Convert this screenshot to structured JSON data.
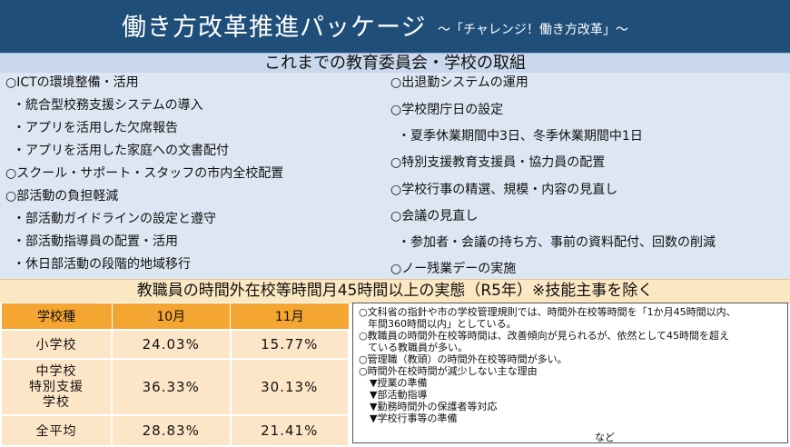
{
  "header": {
    "title": "働き方改革推進パッケージ",
    "subtitle": "～「チャレンジ！働き方改革」～"
  },
  "initiatives": {
    "heading": "これまでの教育委員会・学校の取組",
    "left": [
      "○ICTの環境整備・活用",
      "・統合型校務支援システムの導入",
      "・アプリを活用した欠席報告",
      "・アプリを活用した家庭への文書配付",
      "○スクール・サポート・スタッフの市内全校配置",
      "○部活動の負担軽減",
      "・部活動ガイドラインの設定と遵守",
      "・部活動指導員の配置・活用",
      "・休日部活動の段階的地域移行"
    ],
    "right": [
      "○出退勤システムの運用",
      "○学校閉庁日の設定",
      "・夏季休業期間中3日、冬季休業期間中1日",
      "○特別支援教育支援員・協力員の配置",
      "○学校行事の精選、規模・内容の見直し",
      "○会議の見直し",
      "・参加者・会議の持ち方、事前の資料配付、回数の削減",
      "○ノー残業デーの実施"
    ]
  },
  "stats": {
    "heading": "教職員の時間外在校等時間月45時間以上の実態（R5年）※技能主事を除く",
    "table": {
      "headers": [
        "学校種",
        "10月",
        "11月"
      ],
      "rows": [
        {
          "type": "小学校",
          "oct": "24.03%",
          "nov": "15.77%"
        },
        {
          "type": "中学校\n特別支援\n学校",
          "oct": "36.33%",
          "nov": "30.13%"
        },
        {
          "type": "全平均",
          "oct": "28.83%",
          "nov": "21.41%"
        }
      ]
    },
    "notes": {
      "line1a": "○文科省の指針や市の学校管理規則では、時間外在校等時間を「1か月45時間以内、",
      "line1b": "年間360時間以内」としている。",
      "line2a": "○教職員の時間外在校等時間は、改善傾向が見られるが、依然として45時間を超え",
      "line2b": "ている教職員が多い。",
      "line3": "○管理職（教頭）の時間外在校等時間が多い。",
      "line4": "○時間外在校時間が減少しない主な理由",
      "reasons": [
        "▼授業の準備",
        "▼部活動指導",
        "▼勤務時間外の保護者等対応",
        "▼学校行事等の準備"
      ],
      "etc": "など"
    }
  }
}
